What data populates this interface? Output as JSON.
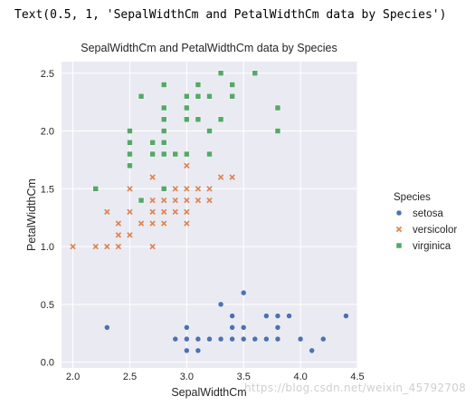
{
  "output_text": "Text(0.5, 1, 'SepalWidthCm and PetalWidthCm data by Species')",
  "watermark": "https://blog.csdn.net/weixin_45792708",
  "colors": {
    "plot_bg": "#eaeaf2",
    "grid": "#ffffff",
    "text": "#262626",
    "setosa": "#4c72b0",
    "versicolor": "#dd8452",
    "virginica": "#55a868"
  },
  "chart_data": {
    "type": "scatter",
    "title": "SepalWidthCm and PetalWidthCm data by Species",
    "xlabel": "SepalWidthCm",
    "ylabel": "PetalWidthCm",
    "xlim": [
      1.9,
      4.5
    ],
    "ylim": [
      -0.05,
      2.6
    ],
    "xticks": [
      "2.0",
      "2.5",
      "3.0",
      "3.5",
      "4.0",
      "4.5"
    ],
    "yticks": [
      "0.0",
      "0.5",
      "1.0",
      "1.5",
      "2.0",
      "2.5"
    ],
    "grid": true,
    "legend_placement": "right",
    "legend_title": "Species",
    "series": [
      {
        "name": "setosa",
        "marker": "circle",
        "color": "#4c72b0",
        "points": [
          [
            2.3,
            0.3
          ],
          [
            2.9,
            0.2
          ],
          [
            3.0,
            0.1
          ],
          [
            3.0,
            0.2
          ],
          [
            3.0,
            0.3
          ],
          [
            3.1,
            0.1
          ],
          [
            3.1,
            0.2
          ],
          [
            3.2,
            0.2
          ],
          [
            3.3,
            0.2
          ],
          [
            3.3,
            0.5
          ],
          [
            3.4,
            0.2
          ],
          [
            3.4,
            0.3
          ],
          [
            3.4,
            0.4
          ],
          [
            3.5,
            0.2
          ],
          [
            3.5,
            0.3
          ],
          [
            3.5,
            0.6
          ],
          [
            3.6,
            0.2
          ],
          [
            3.7,
            0.2
          ],
          [
            3.7,
            0.4
          ],
          [
            3.8,
            0.2
          ],
          [
            3.8,
            0.3
          ],
          [
            3.8,
            0.4
          ],
          [
            3.9,
            0.4
          ],
          [
            4.0,
            0.2
          ],
          [
            4.1,
            0.1
          ],
          [
            4.2,
            0.2
          ],
          [
            4.4,
            0.4
          ]
        ]
      },
      {
        "name": "versicolor",
        "marker": "x",
        "color": "#dd8452",
        "points": [
          [
            2.0,
            1.0
          ],
          [
            2.2,
            1.0
          ],
          [
            2.2,
            1.5
          ],
          [
            2.3,
            1.0
          ],
          [
            2.3,
            1.3
          ],
          [
            2.4,
            1.0
          ],
          [
            2.4,
            1.1
          ],
          [
            2.4,
            1.2
          ],
          [
            2.5,
            1.1
          ],
          [
            2.5,
            1.3
          ],
          [
            2.5,
            1.5
          ],
          [
            2.6,
            1.2
          ],
          [
            2.6,
            1.4
          ],
          [
            2.7,
            1.0
          ],
          [
            2.7,
            1.2
          ],
          [
            2.7,
            1.3
          ],
          [
            2.7,
            1.4
          ],
          [
            2.7,
            1.6
          ],
          [
            2.8,
            1.2
          ],
          [
            2.8,
            1.3
          ],
          [
            2.8,
            1.4
          ],
          [
            2.8,
            1.5
          ],
          [
            2.9,
            1.3
          ],
          [
            2.9,
            1.4
          ],
          [
            2.9,
            1.5
          ],
          [
            3.0,
            1.2
          ],
          [
            3.0,
            1.3
          ],
          [
            3.0,
            1.4
          ],
          [
            3.0,
            1.5
          ],
          [
            3.0,
            1.7
          ],
          [
            3.0,
            1.8
          ],
          [
            3.1,
            1.4
          ],
          [
            3.1,
            1.5
          ],
          [
            3.2,
            1.4
          ],
          [
            3.2,
            1.5
          ],
          [
            3.3,
            1.6
          ],
          [
            3.4,
            1.6
          ]
        ]
      },
      {
        "name": "virginica",
        "marker": "square",
        "color": "#55a868",
        "points": [
          [
            2.2,
            1.5
          ],
          [
            2.5,
            1.7
          ],
          [
            2.5,
            1.8
          ],
          [
            2.5,
            1.9
          ],
          [
            2.5,
            2.0
          ],
          [
            2.6,
            1.4
          ],
          [
            2.6,
            2.3
          ],
          [
            2.7,
            1.8
          ],
          [
            2.7,
            1.9
          ],
          [
            2.8,
            1.5
          ],
          [
            2.8,
            1.8
          ],
          [
            2.8,
            1.9
          ],
          [
            2.8,
            2.0
          ],
          [
            2.8,
            2.1
          ],
          [
            2.8,
            2.2
          ],
          [
            2.8,
            2.4
          ],
          [
            2.9,
            1.8
          ],
          [
            3.0,
            1.8
          ],
          [
            3.0,
            2.1
          ],
          [
            3.0,
            2.2
          ],
          [
            3.0,
            2.3
          ],
          [
            3.1,
            2.1
          ],
          [
            3.1,
            2.3
          ],
          [
            3.1,
            2.4
          ],
          [
            3.2,
            1.8
          ],
          [
            3.2,
            2.0
          ],
          [
            3.2,
            2.3
          ],
          [
            3.3,
            2.1
          ],
          [
            3.3,
            2.5
          ],
          [
            3.4,
            2.3
          ],
          [
            3.4,
            2.4
          ],
          [
            3.6,
            2.5
          ],
          [
            3.8,
            2.0
          ],
          [
            3.8,
            2.2
          ]
        ]
      }
    ]
  }
}
